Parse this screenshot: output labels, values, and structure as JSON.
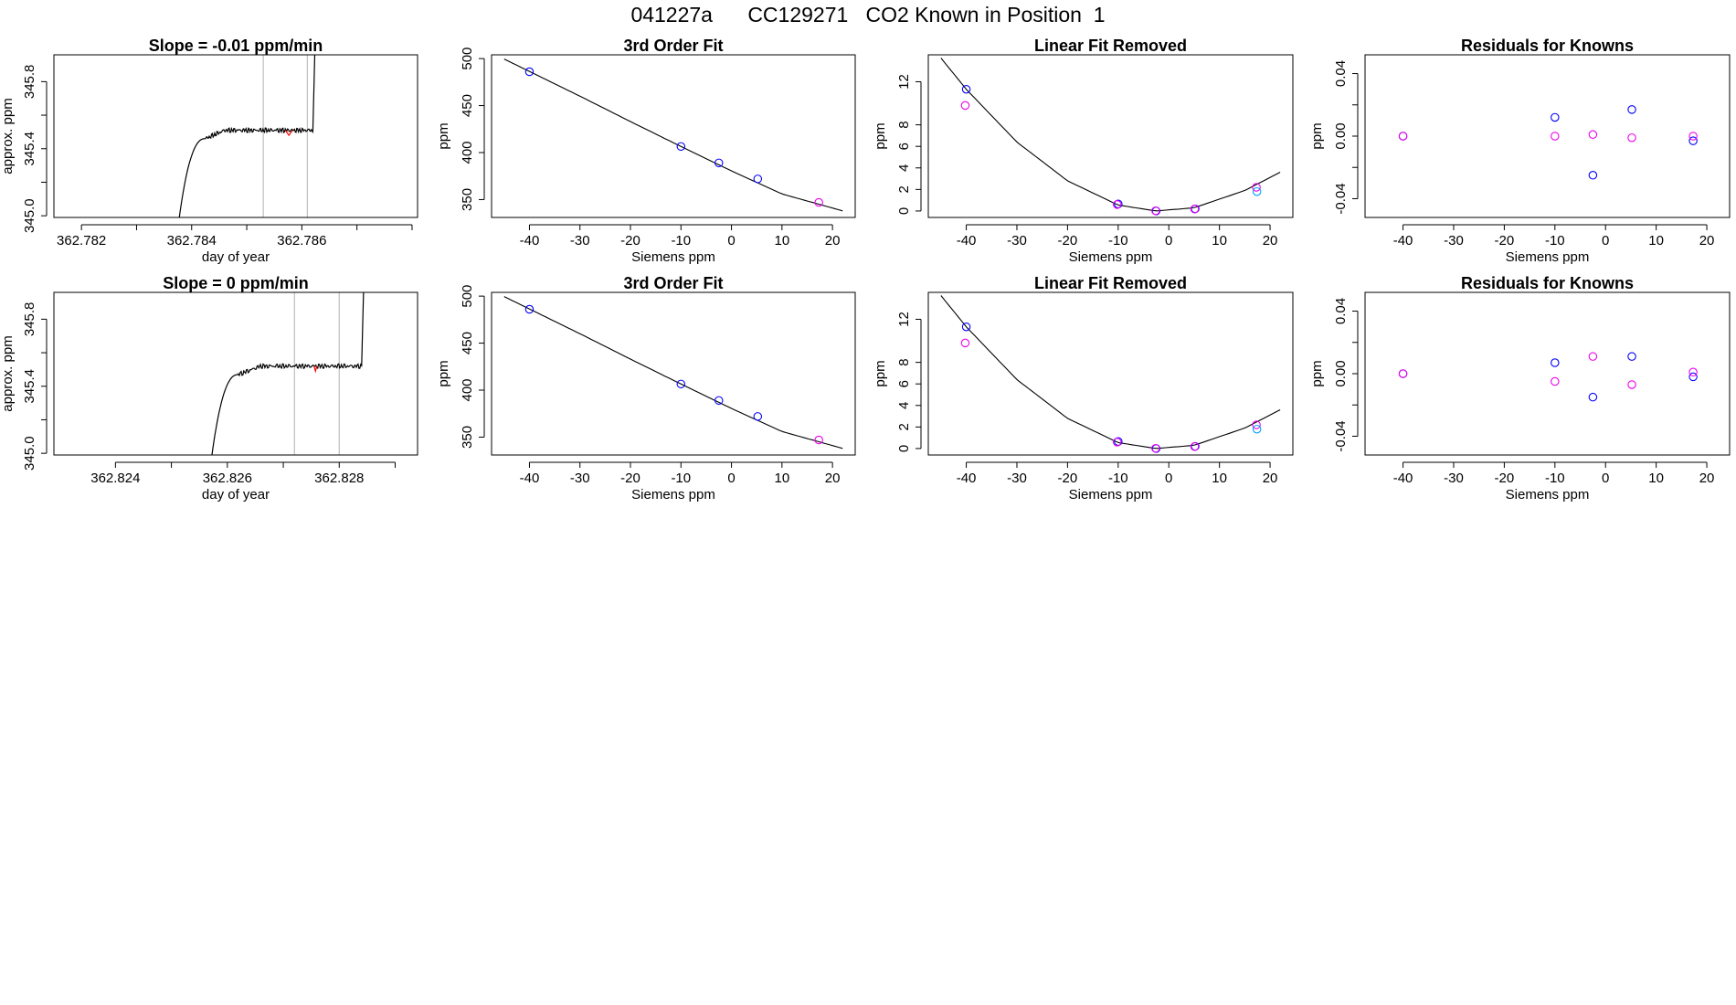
{
  "figure": {
    "title": "041227a      CC129271   CO2 Known in Position  1"
  },
  "colors": {
    "axis": "#000000",
    "curve": "#000000",
    "blue_points": "#0000ff",
    "magenta_points": "#ee00ee",
    "cyan_points": "#00a0ff",
    "red_points": "#ff0000",
    "vertical_lines": "#bebebe"
  },
  "chart_data": [
    {
      "id": "r1-time",
      "type": "line",
      "title": "Slope =  -0.01  ppm/min",
      "xlabel": "day of year",
      "ylabel": "approx. ppm",
      "xlim": [
        362.7815,
        362.7881
      ],
      "ylim": [
        344.99,
        345.96
      ],
      "xticks": [
        362.782,
        362.783,
        362.784,
        362.785,
        362.786,
        362.787,
        362.788
      ],
      "xtick_labels": [
        "362.782",
        "",
        "362.784",
        "",
        "362.786",
        "",
        ""
      ],
      "yticks": [
        345.0,
        345.2,
        345.4,
        345.6,
        345.8
      ],
      "ytick_labels": [
        "345.0",
        "",
        "345.4",
        "",
        "345.8"
      ],
      "start": 362.7837,
      "rise_end": 362.78425,
      "plateau_end": 362.7862,
      "plateau_value": 345.51,
      "vlines": [
        362.7853,
        362.7861
      ],
      "red_segment": [
        362.7857,
        362.78583
      ]
    },
    {
      "id": "r1-fit",
      "type": "scatter",
      "title": "3rd Order Fit",
      "xlabel": "Siemens ppm",
      "ylabel": "ppm",
      "xlim": [
        -47.5,
        24.5
      ],
      "ylim": [
        331,
        504
      ],
      "xticks": [
        -40,
        -30,
        -20,
        -10,
        0,
        10,
        20
      ],
      "xtick_labels": [
        "-40",
        "-30",
        "-20",
        "-10",
        "0",
        "10",
        "20"
      ],
      "yticks": [
        350,
        400,
        450,
        500
      ],
      "ytick_labels": [
        "350",
        "400",
        "450",
        "500"
      ],
      "curve": {
        "x": [
          -45,
          -30,
          -20,
          -10,
          0,
          10,
          22
        ],
        "y": [
          499.5,
          460,
          433,
          406.5,
          380.5,
          356,
          338
        ]
      },
      "series": [
        {
          "name": "blue",
          "color": "blue_points",
          "x": [
            -40,
            -10,
            -2.5,
            5.2
          ],
          "y": [
            486,
            406.5,
            389,
            372
          ]
        },
        {
          "name": "magenta",
          "color": "magenta_points",
          "x": [
            17.3
          ],
          "y": [
            347
          ]
        }
      ]
    },
    {
      "id": "r1-lin",
      "type": "scatter",
      "title": "Linear Fit Removed",
      "xlabel": "Siemens ppm",
      "ylabel": "ppm",
      "xlim": [
        -47.5,
        24.5
      ],
      "ylim": [
        -0.6,
        14.5
      ],
      "xticks": [
        -40,
        -30,
        -20,
        -10,
        0,
        10,
        20
      ],
      "xtick_labels": [
        "-40",
        "-30",
        "-20",
        "-10",
        "0",
        "10",
        "20"
      ],
      "yticks": [
        0,
        2,
        4,
        6,
        8,
        12
      ],
      "ytick_labels": [
        "0",
        "2",
        "4",
        "6",
        "8",
        "12"
      ],
      "curve": {
        "x": [
          -45,
          -40,
          -30,
          -20,
          -10,
          -2.5,
          5,
          15,
          22
        ],
        "y": [
          14.2,
          11.3,
          6.4,
          2.8,
          0.55,
          0.0,
          0.3,
          1.9,
          3.6
        ]
      },
      "series": [
        {
          "name": "blue",
          "color": "blue_points",
          "x": [
            -40,
            -10,
            -2.5,
            5.2
          ],
          "y": [
            11.3,
            0.65,
            0.0,
            0.2
          ]
        },
        {
          "name": "magenta",
          "color": "magenta_points",
          "x": [
            -40.2,
            -10.2,
            -2.6,
            5.1,
            17.3
          ],
          "y": [
            9.8,
            0.6,
            0.02,
            0.18,
            2.2
          ]
        },
        {
          "name": "cyan",
          "color": "cyan_points",
          "x": [
            17.4
          ],
          "y": [
            1.8
          ]
        }
      ]
    },
    {
      "id": "r1-res",
      "type": "scatter",
      "title": "Residuals for Knowns",
      "xlabel": "Siemens ppm",
      "ylabel": "ppm",
      "xlim": [
        -47.5,
        24.5
      ],
      "ylim": [
        -0.052,
        0.052
      ],
      "xticks": [
        -40,
        -30,
        -20,
        -10,
        0,
        10,
        20
      ],
      "xtick_labels": [
        "-40",
        "-30",
        "-20",
        "-10",
        "0",
        "10",
        "20"
      ],
      "yticks": [
        -0.04,
        -0.02,
        0.0,
        0.02,
        0.04
      ],
      "ytick_labels": [
        "-0.04",
        "",
        "0.00",
        "",
        "0.04"
      ],
      "series": [
        {
          "name": "blue",
          "color": "blue_points",
          "x": [
            -40,
            -10,
            -2.5,
            5.2,
            17.3
          ],
          "y": [
            0.0,
            0.012,
            -0.025,
            0.017,
            -0.003
          ]
        },
        {
          "name": "magenta",
          "color": "magenta_points",
          "x": [
            -40,
            -10,
            -2.5,
            5.2,
            17.3
          ],
          "y": [
            0.0,
            0.0,
            0.001,
            -0.001,
            0.0
          ]
        }
      ]
    },
    {
      "id": "r2-time",
      "type": "line",
      "title": "Slope =  0  ppm/min",
      "xlabel": "day of year",
      "ylabel": "approx. ppm",
      "xlim": [
        362.8229,
        362.8294
      ],
      "ylim": [
        344.99,
        345.96
      ],
      "xticks": [
        362.824,
        362.825,
        362.826,
        362.827,
        362.828,
        362.829
      ],
      "xtick_labels": [
        "362.824",
        "",
        "362.826",
        "",
        "362.828",
        ""
      ],
      "yticks": [
        345.0,
        345.2,
        345.4,
        345.6,
        345.8
      ],
      "ytick_labels": [
        "345.0",
        "",
        "345.4",
        "",
        "345.8"
      ],
      "start": 362.82565,
      "rise_end": 362.8262,
      "plateau_end": 362.8284,
      "plateau_value": 345.52,
      "vlines": [
        362.8272,
        362.828
      ],
      "red_segment": [
        362.82755,
        362.8276
      ]
    },
    {
      "id": "r2-fit",
      "type": "scatter",
      "title": "3rd Order Fit",
      "xlabel": "Siemens ppm",
      "ylabel": "ppm",
      "xlim": [
        -47.5,
        24.5
      ],
      "ylim": [
        331,
        504
      ],
      "xticks": [
        -40,
        -30,
        -20,
        -10,
        0,
        10,
        20
      ],
      "xtick_labels": [
        "-40",
        "-30",
        "-20",
        "-10",
        "0",
        "10",
        "20"
      ],
      "yticks": [
        350,
        400,
        450,
        500
      ],
      "ytick_labels": [
        "350",
        "400",
        "450",
        "500"
      ],
      "curve": {
        "x": [
          -45,
          -30,
          -20,
          -10,
          0,
          10,
          22
        ],
        "y": [
          499.5,
          460,
          433,
          406.5,
          380.5,
          356,
          338
        ]
      },
      "series": [
        {
          "name": "blue",
          "color": "blue_points",
          "x": [
            -40,
            -10,
            -2.5,
            5.2
          ],
          "y": [
            486,
            406.5,
            389,
            372
          ]
        },
        {
          "name": "magenta",
          "color": "magenta_points",
          "x": [
            17.3
          ],
          "y": [
            347
          ]
        }
      ]
    },
    {
      "id": "r2-lin",
      "type": "scatter",
      "title": "Linear Fit Removed",
      "xlabel": "Siemens ppm",
      "ylabel": "ppm",
      "xlim": [
        -47.5,
        24.5
      ],
      "ylim": [
        -0.6,
        14.5
      ],
      "xticks": [
        -40,
        -30,
        -20,
        -10,
        0,
        10,
        20
      ],
      "xtick_labels": [
        "-40",
        "-30",
        "-20",
        "-10",
        "0",
        "10",
        "20"
      ],
      "yticks": [
        0,
        2,
        4,
        6,
        8,
        12
      ],
      "ytick_labels": [
        "0",
        "2",
        "4",
        "6",
        "8",
        "12"
      ],
      "curve": {
        "x": [
          -45,
          -40,
          -30,
          -20,
          -10,
          -2.5,
          5,
          15,
          22
        ],
        "y": [
          14.2,
          11.3,
          6.4,
          2.8,
          0.55,
          0.0,
          0.3,
          1.9,
          3.6
        ]
      },
      "series": [
        {
          "name": "blue",
          "color": "blue_points",
          "x": [
            -40,
            -10,
            -2.5,
            5.2
          ],
          "y": [
            11.3,
            0.65,
            0.0,
            0.2
          ]
        },
        {
          "name": "magenta",
          "color": "magenta_points",
          "x": [
            -40.2,
            -10.2,
            -2.6,
            5.1,
            17.3
          ],
          "y": [
            9.8,
            0.6,
            0.02,
            0.18,
            2.2
          ]
        },
        {
          "name": "cyan",
          "color": "cyan_points",
          "x": [
            17.4
          ],
          "y": [
            1.8
          ]
        }
      ]
    },
    {
      "id": "r2-res",
      "type": "scatter",
      "title": "Residuals for Knowns",
      "xlabel": "Siemens ppm",
      "ylabel": "ppm",
      "xlim": [
        -47.5,
        24.5
      ],
      "ylim": [
        -0.052,
        0.052
      ],
      "xticks": [
        -40,
        -30,
        -20,
        -10,
        0,
        10,
        20
      ],
      "xtick_labels": [
        "-40",
        "-30",
        "-20",
        "-10",
        "0",
        "10",
        "20"
      ],
      "yticks": [
        -0.04,
        -0.02,
        0.0,
        0.02,
        0.04
      ],
      "ytick_labels": [
        "-0.04",
        "",
        "0.00",
        "",
        "0.04"
      ],
      "series": [
        {
          "name": "blue",
          "color": "blue_points",
          "x": [
            -40,
            -10,
            -2.5,
            5.2,
            17.3
          ],
          "y": [
            0.0,
            0.007,
            -0.015,
            0.011,
            -0.002
          ]
        },
        {
          "name": "magenta",
          "color": "magenta_points",
          "x": [
            -40,
            -10,
            -2.5,
            5.2,
            17.3
          ],
          "y": [
            0.0,
            -0.005,
            0.011,
            -0.007,
            0.001
          ]
        }
      ]
    }
  ]
}
